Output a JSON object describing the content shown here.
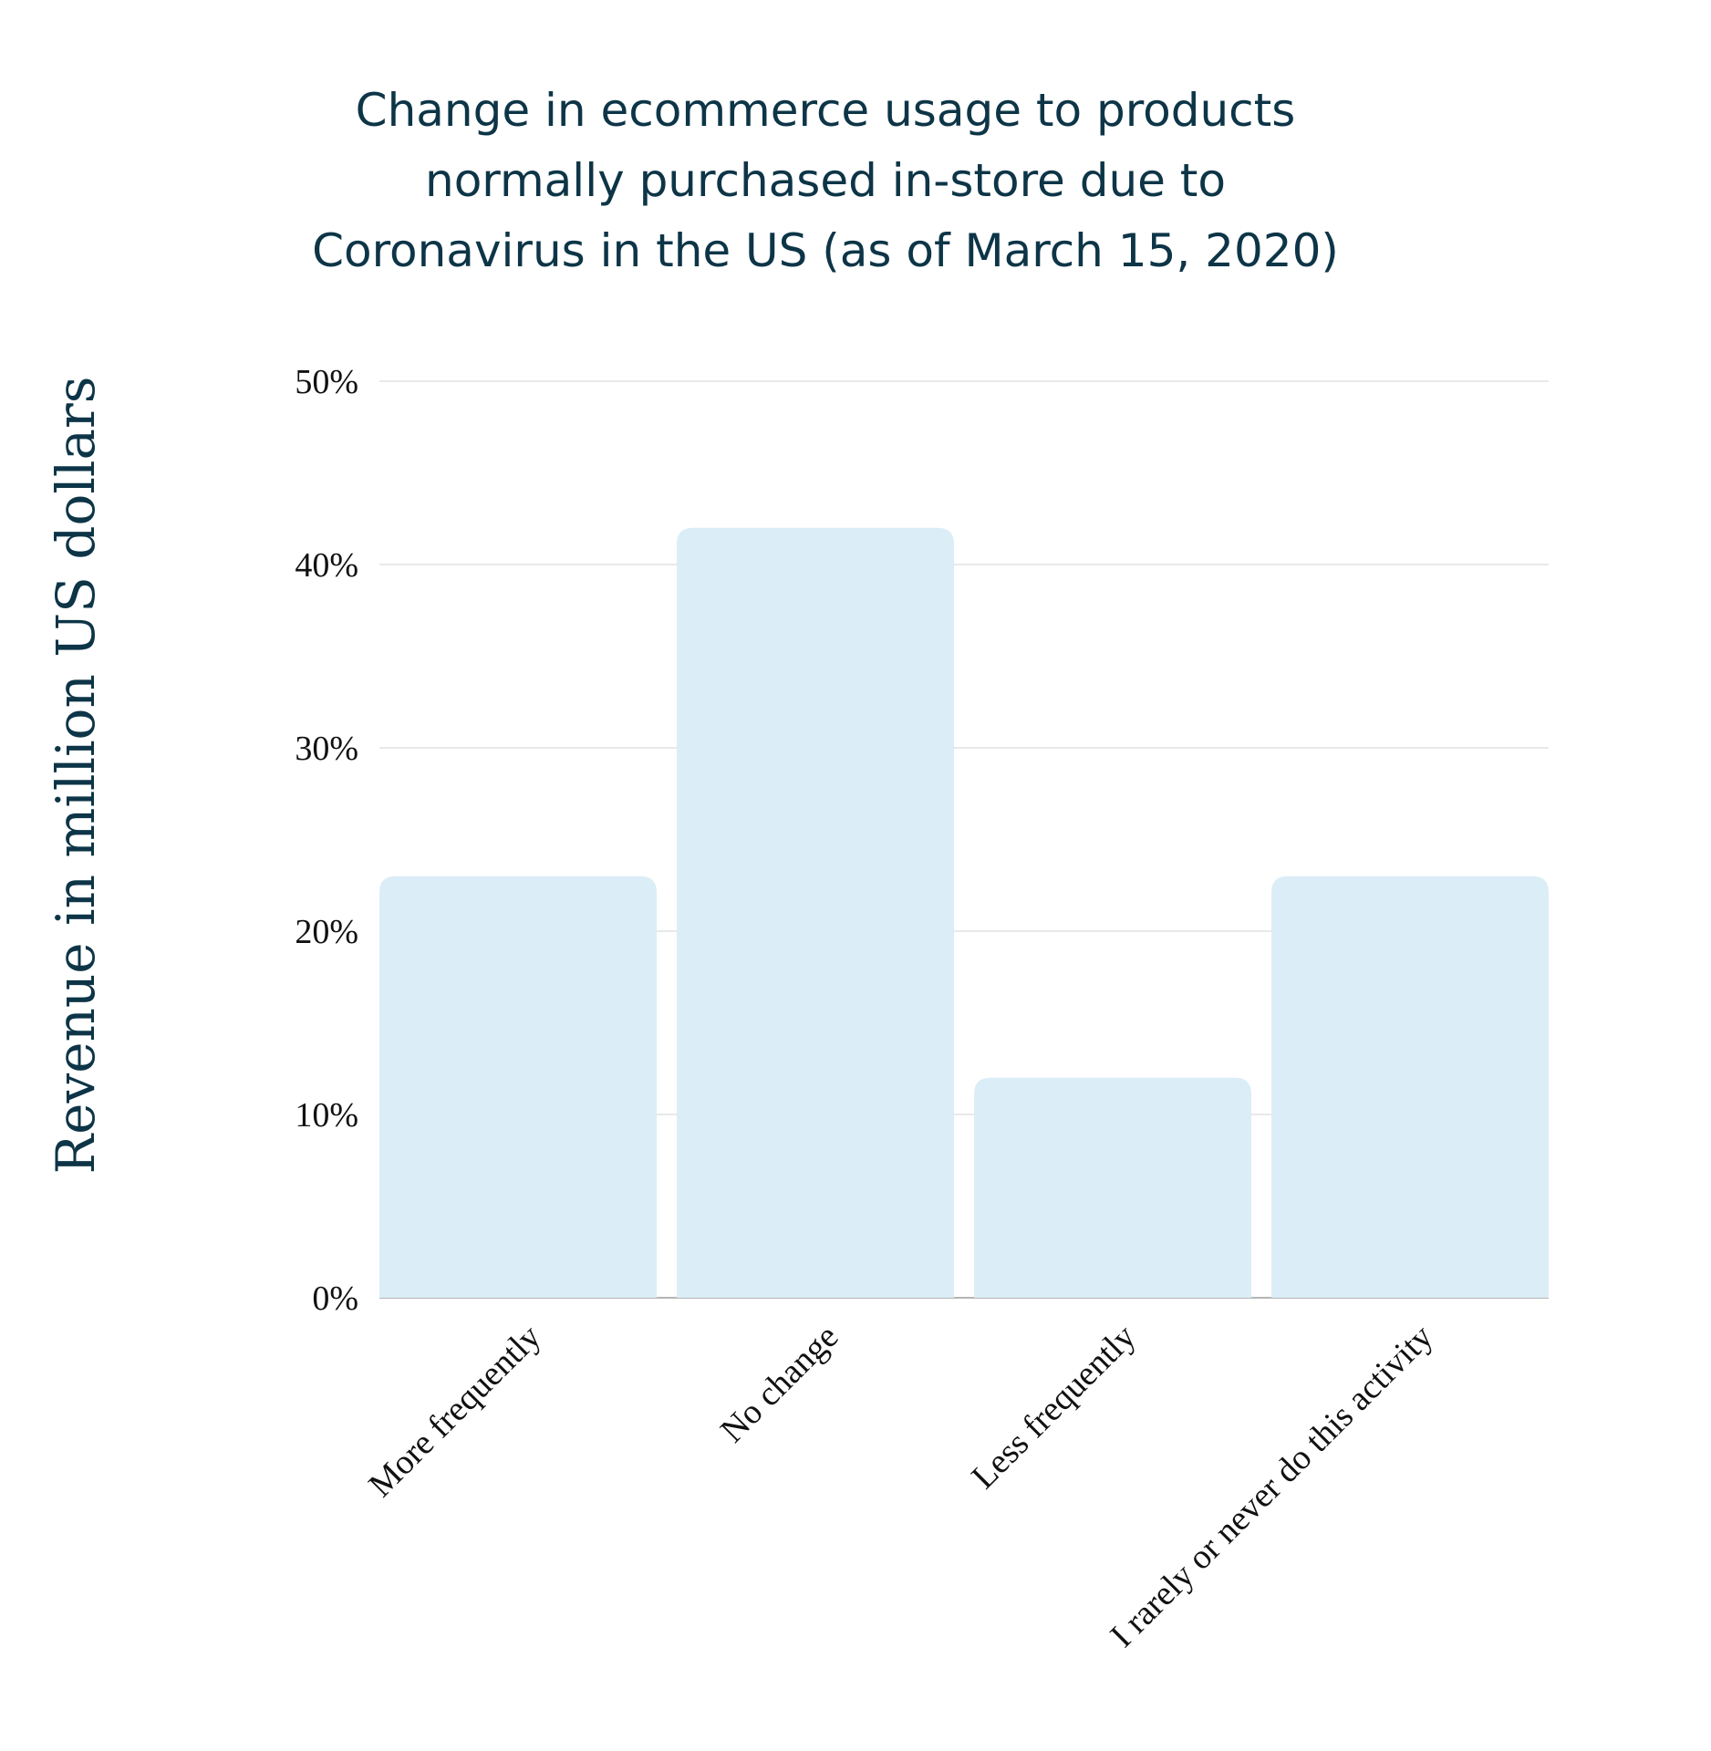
{
  "chart_data": {
    "type": "bar",
    "title_lines": [
      "Change in ecommerce usage to products",
      "normally purchased in-store due to",
      "Coronavirus in the US (as of March 15, 2020)"
    ],
    "xlabel": "",
    "ylabel": "Revenue in million US dollars",
    "categories": [
      "More frequently",
      "No change",
      "Less frequently",
      "I rarely or never do this activity"
    ],
    "values": [
      23,
      42,
      12,
      23
    ],
    "ylim": [
      0,
      50
    ],
    "y_ticks": [
      0,
      10,
      20,
      30,
      40,
      50
    ],
    "y_tick_labels": [
      "0%",
      "10%",
      "20%",
      "30%",
      "40%",
      "50%"
    ],
    "grid": true,
    "legend": "none",
    "colors": {
      "bar": "#dbedf7",
      "title": "#0d3547",
      "grid": "#e2e2e2"
    }
  }
}
